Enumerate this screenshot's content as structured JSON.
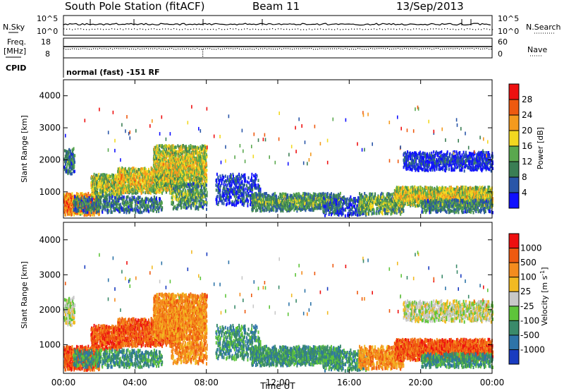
{
  "header": {
    "station": "South Pole Station (fitACF)",
    "beam": "Beam 11",
    "date": "13/Sep/2013"
  },
  "sky_panel": {
    "left_label": "N.Sky",
    "right_label": "N.Search",
    "left_ticks": [
      "10^5",
      "10^0"
    ],
    "right_ticks": [
      "10^5",
      "10^0"
    ]
  },
  "freq_panel": {
    "left_label_1": "Freq.",
    "left_label_2": "[MHz]",
    "right_label": "Nave",
    "left_ticks": [
      "18",
      "8"
    ],
    "right_ticks": [
      "60",
      "0"
    ]
  },
  "cpid_panel": {
    "label": "CPID",
    "mode": "normal (fast) -151 RF"
  },
  "chart_data": [
    {
      "type": "heatmap",
      "name": "power",
      "ylabel": "Slant Range [km]",
      "y_ticks": [
        "1000",
        "2000",
        "3000",
        "4000"
      ],
      "ylim": [
        180,
        4500
      ],
      "x_ticks": [
        "00:00",
        "04:00",
        "08:00",
        "12:00",
        "16:00",
        "20:00",
        "00:00"
      ],
      "xlabel": "Time UT",
      "colorbar": {
        "label": "Power [dB]",
        "ticks": [
          "4",
          "8",
          "12",
          "16",
          "20",
          "24",
          "28"
        ],
        "colors": [
          "#1010ff",
          "#2a56a8",
          "#3a7e54",
          "#5aa84e",
          "#f2d820",
          "#f49a1e",
          "#ee5a10",
          "#ee1010"
        ]
      }
    },
    {
      "type": "heatmap",
      "name": "velocity",
      "ylabel": "Slant Range [km]",
      "y_ticks": [
        "1000",
        "2000",
        "3000",
        "4000"
      ],
      "ylim": [
        180,
        4500
      ],
      "x_ticks": [
        "00:00",
        "04:00",
        "08:00",
        "12:00",
        "16:00",
        "20:00",
        "00:00"
      ],
      "xlabel": "Time UT",
      "colorbar": {
        "label": "Velocity [m s^-1]",
        "ticks": [
          "1000",
          "500",
          "100",
          "25",
          "-25",
          "-100",
          "-500",
          "-1000"
        ],
        "colors": [
          "#1a3cc0",
          "#2e74a8",
          "#3a8a6a",
          "#5ec43a",
          "#c8c8c8",
          "#f2ba22",
          "#f48c1e",
          "#ee5a10",
          "#ee1010"
        ]
      }
    }
  ]
}
